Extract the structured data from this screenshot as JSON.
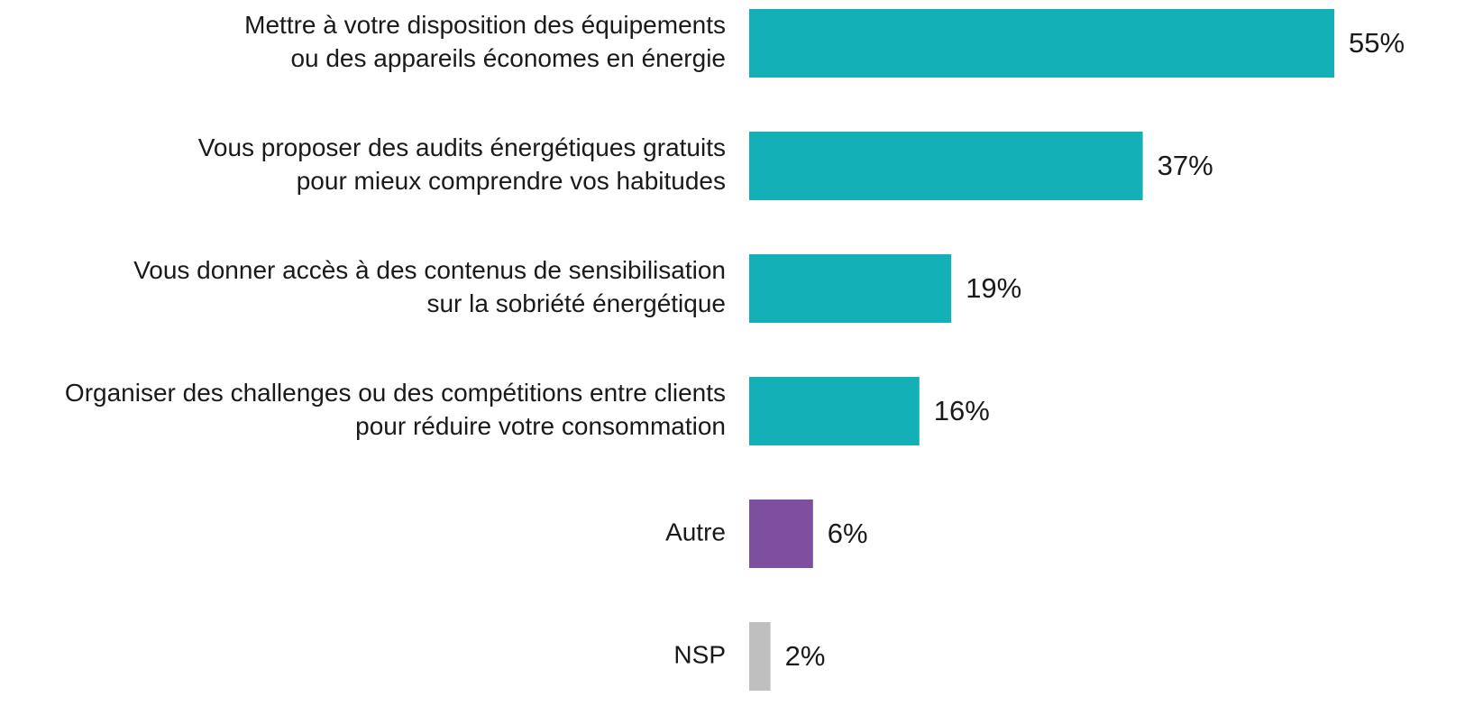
{
  "chart_data": {
    "type": "hbar",
    "categories": [
      [
        "Mettre à votre disposition des équipements",
        "ou des appareils économes en énergie"
      ],
      [
        "Vous proposer des audits énergétiques gratuits",
        "pour mieux comprendre vos habitudes"
      ],
      [
        "Vous donner accès à des contenus de sensibilisation",
        "sur la sobriété énergétique"
      ],
      [
        "Organiser des challenges ou des compétitions entre clients",
        "pour réduire votre consommation"
      ],
      [
        "Autre"
      ],
      [
        "NSP"
      ]
    ],
    "values": [
      55,
      37,
      19,
      16,
      6,
      2
    ],
    "value_labels": [
      "55%",
      "37%",
      "19%",
      "16%",
      "6%",
      "2%"
    ],
    "colors": [
      "#13b0b8",
      "#13b0b8",
      "#13b0b8",
      "#13b0b8",
      "#7f4f9f",
      "#bfbfbf"
    ]
  }
}
